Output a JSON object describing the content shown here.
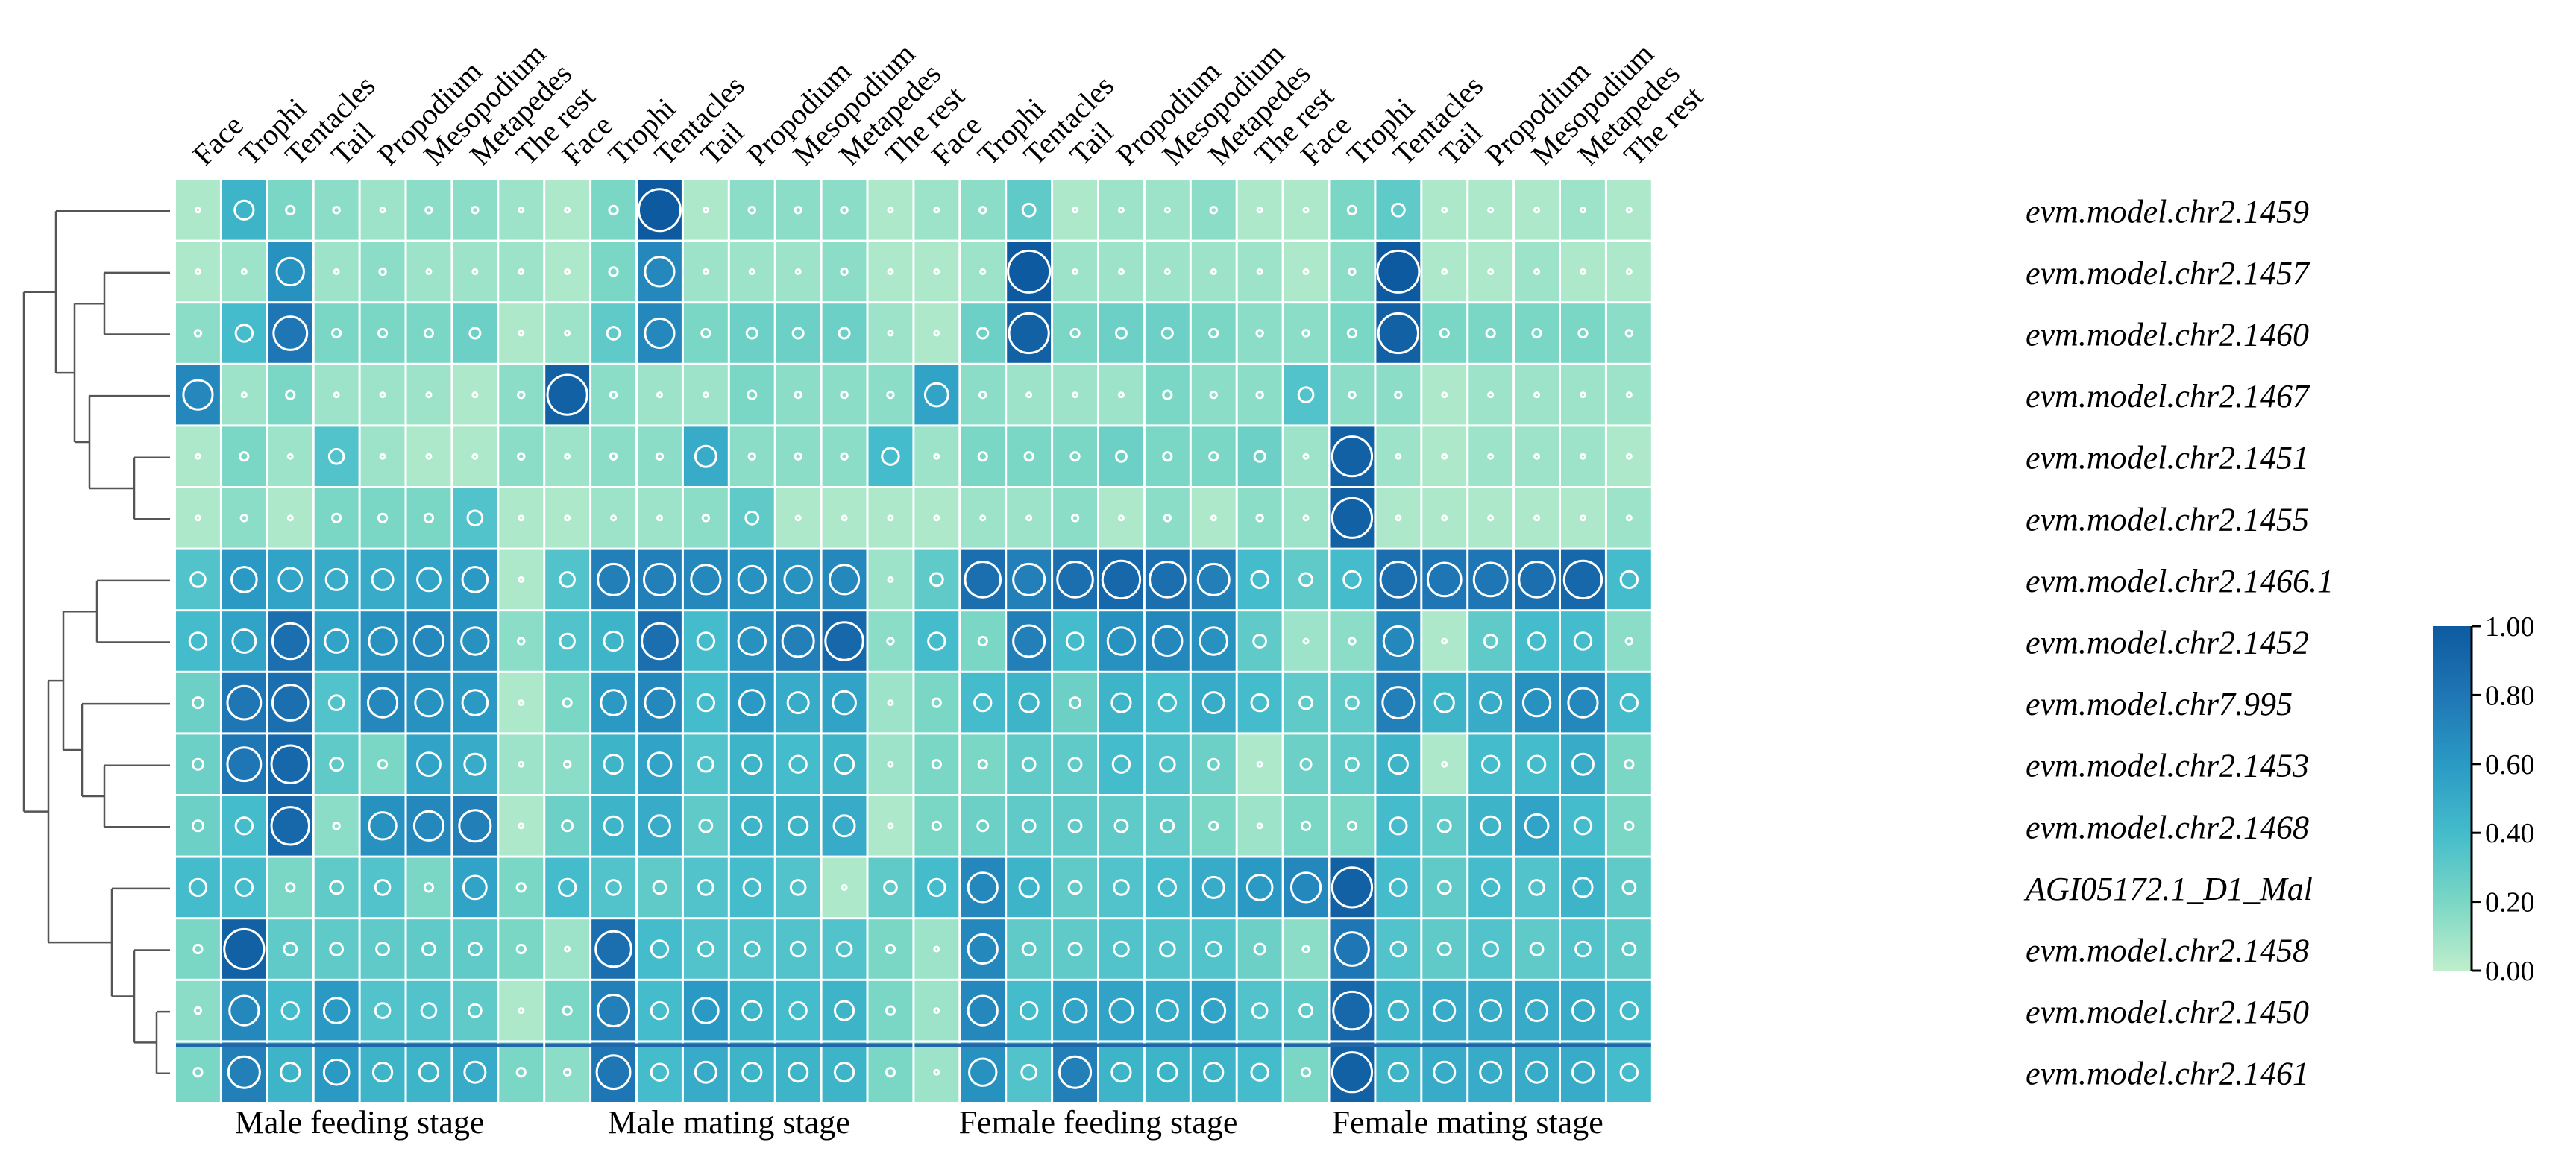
{
  "chart_data": {
    "type": "heatmap",
    "title": "",
    "tissues": [
      "Face",
      "Trophi",
      "Tentacles",
      "Tail",
      "Propodium",
      "Mesopodium",
      "Metapedes",
      "The rest"
    ],
    "groups": [
      "Male feeding stage",
      "Male mating stage",
      "Female feeding stage",
      "Female mating stage"
    ],
    "columns": [
      "Face",
      "Trophi",
      "Tentacles",
      "Tail",
      "Propodium",
      "Mesopodium",
      "Metapedes",
      "The rest",
      "Face",
      "Trophi",
      "Tentacles",
      "Tail",
      "Propodium",
      "Mesopodium",
      "Metapedes",
      "The rest",
      "Face",
      "Trophi",
      "Tentacles",
      "Tail",
      "Propodium",
      "Mesopodium",
      "Metapedes",
      "The rest",
      "Face",
      "Trophi",
      "Tentacles",
      "Tail",
      "Propodium",
      "Mesopodium",
      "Metapedes",
      "The rest"
    ],
    "rows": [
      "evm.model.chr2.1459",
      "evm.model.chr2.1457",
      "evm.model.chr2.1460",
      "evm.model.chr2.1467",
      "evm.model.chr2.1451",
      "evm.model.chr2.1455",
      "evm.model.chr2.1466.1",
      "evm.model.chr2.1452",
      "evm.model.chr7.995",
      "evm.model.chr2.1453",
      "evm.model.chr2.1468",
      "AGI05172.1_D1_Mal",
      "evm.model.chr2.1458",
      "evm.model.chr2.1450",
      "evm.model.chr2.1461"
    ],
    "values": [
      [
        0.05,
        0.45,
        0.2,
        0.15,
        0.1,
        0.15,
        0.15,
        0.1,
        0.05,
        0.2,
        1.0,
        0.05,
        0.15,
        0.15,
        0.15,
        0.05,
        0.1,
        0.15,
        0.3,
        0.05,
        0.1,
        0.1,
        0.15,
        0.05,
        0.05,
        0.2,
        0.3,
        0.05,
        0.05,
        0.05,
        0.1,
        0.05
      ],
      [
        0.05,
        0.1,
        0.65,
        0.1,
        0.15,
        0.1,
        0.1,
        0.1,
        0.05,
        0.2,
        0.7,
        0.1,
        0.1,
        0.1,
        0.15,
        0.05,
        0.05,
        0.1,
        1.0,
        0.1,
        0.1,
        0.1,
        0.1,
        0.1,
        0.05,
        0.15,
        1.0,
        0.05,
        0.05,
        0.1,
        0.05,
        0.05
      ],
      [
        0.15,
        0.4,
        0.8,
        0.2,
        0.2,
        0.2,
        0.25,
        0.05,
        0.1,
        0.3,
        0.7,
        0.2,
        0.25,
        0.25,
        0.25,
        0.1,
        0.05,
        0.25,
        0.95,
        0.2,
        0.25,
        0.25,
        0.2,
        0.15,
        0.15,
        0.2,
        0.95,
        0.2,
        0.2,
        0.2,
        0.2,
        0.15
      ],
      [
        0.7,
        0.1,
        0.2,
        0.1,
        0.1,
        0.1,
        0.05,
        0.15,
        0.95,
        0.15,
        0.1,
        0.1,
        0.2,
        0.15,
        0.15,
        0.15,
        0.55,
        0.15,
        0.1,
        0.1,
        0.1,
        0.2,
        0.15,
        0.15,
        0.35,
        0.15,
        0.15,
        0.05,
        0.1,
        0.1,
        0.1,
        0.1
      ],
      [
        0.05,
        0.2,
        0.1,
        0.35,
        0.1,
        0.05,
        0.05,
        0.15,
        0.1,
        0.15,
        0.15,
        0.5,
        0.15,
        0.15,
        0.15,
        0.4,
        0.1,
        0.2,
        0.2,
        0.2,
        0.25,
        0.2,
        0.2,
        0.25,
        0.1,
        0.95,
        0.1,
        0.05,
        0.1,
        0.1,
        0.1,
        0.05
      ],
      [
        0.05,
        0.15,
        0.05,
        0.2,
        0.2,
        0.2,
        0.35,
        0.05,
        0.05,
        0.1,
        0.1,
        0.15,
        0.3,
        0.05,
        0.05,
        0.05,
        0.05,
        0.1,
        0.1,
        0.15,
        0.05,
        0.15,
        0.05,
        0.15,
        0.1,
        0.95,
        0.05,
        0.05,
        0.05,
        0.05,
        0.05,
        0.1
      ],
      [
        0.35,
        0.6,
        0.55,
        0.5,
        0.5,
        0.55,
        0.6,
        0.05,
        0.35,
        0.75,
        0.75,
        0.7,
        0.65,
        0.65,
        0.7,
        0.1,
        0.3,
        0.85,
        0.75,
        0.85,
        0.9,
        0.85,
        0.75,
        0.4,
        0.3,
        0.4,
        0.85,
        0.8,
        0.8,
        0.85,
        0.9,
        0.4
      ],
      [
        0.4,
        0.55,
        0.85,
        0.55,
        0.65,
        0.7,
        0.65,
        0.15,
        0.35,
        0.45,
        0.85,
        0.4,
        0.65,
        0.75,
        0.9,
        0.15,
        0.4,
        0.2,
        0.75,
        0.4,
        0.65,
        0.7,
        0.65,
        0.3,
        0.1,
        0.15,
        0.7,
        0.05,
        0.3,
        0.4,
        0.4,
        0.15
      ],
      [
        0.25,
        0.8,
        0.85,
        0.35,
        0.7,
        0.65,
        0.6,
        0.05,
        0.2,
        0.6,
        0.7,
        0.4,
        0.6,
        0.5,
        0.55,
        0.1,
        0.2,
        0.4,
        0.45,
        0.25,
        0.45,
        0.4,
        0.5,
        0.4,
        0.3,
        0.3,
        0.75,
        0.45,
        0.5,
        0.65,
        0.7,
        0.4
      ],
      [
        0.25,
        0.8,
        0.9,
        0.3,
        0.2,
        0.55,
        0.5,
        0.1,
        0.15,
        0.45,
        0.55,
        0.35,
        0.45,
        0.4,
        0.45,
        0.1,
        0.2,
        0.2,
        0.3,
        0.3,
        0.4,
        0.35,
        0.25,
        0.05,
        0.25,
        0.3,
        0.45,
        0.05,
        0.4,
        0.4,
        0.5,
        0.2
      ],
      [
        0.25,
        0.4,
        0.9,
        0.15,
        0.65,
        0.7,
        0.75,
        0.05,
        0.25,
        0.45,
        0.5,
        0.3,
        0.45,
        0.45,
        0.5,
        0.05,
        0.2,
        0.25,
        0.3,
        0.3,
        0.3,
        0.3,
        0.2,
        0.1,
        0.2,
        0.2,
        0.4,
        0.3,
        0.45,
        0.55,
        0.4,
        0.2
      ],
      [
        0.4,
        0.4,
        0.2,
        0.3,
        0.35,
        0.2,
        0.55,
        0.2,
        0.4,
        0.35,
        0.3,
        0.35,
        0.4,
        0.35,
        0.05,
        0.3,
        0.4,
        0.7,
        0.45,
        0.3,
        0.35,
        0.4,
        0.5,
        0.6,
        0.7,
        0.95,
        0.4,
        0.3,
        0.4,
        0.35,
        0.45,
        0.3
      ],
      [
        0.2,
        0.95,
        0.3,
        0.3,
        0.3,
        0.3,
        0.3,
        0.2,
        0.1,
        0.85,
        0.4,
        0.35,
        0.35,
        0.35,
        0.35,
        0.2,
        0.1,
        0.7,
        0.3,
        0.3,
        0.35,
        0.35,
        0.35,
        0.25,
        0.15,
        0.8,
        0.35,
        0.3,
        0.35,
        0.3,
        0.35,
        0.3
      ],
      [
        0.15,
        0.7,
        0.4,
        0.6,
        0.35,
        0.35,
        0.3,
        0.05,
        0.2,
        0.75,
        0.4,
        0.6,
        0.45,
        0.4,
        0.45,
        0.2,
        0.1,
        0.7,
        0.4,
        0.55,
        0.55,
        0.5,
        0.55,
        0.35,
        0.3,
        0.9,
        0.45,
        0.5,
        0.5,
        0.5,
        0.5,
        0.4
      ],
      [
        0.2,
        0.75,
        0.45,
        0.6,
        0.45,
        0.45,
        0.5,
        0.2,
        0.15,
        0.8,
        0.4,
        0.5,
        0.45,
        0.45,
        0.45,
        0.2,
        0.1,
        0.65,
        0.35,
        0.75,
        0.45,
        0.45,
        0.45,
        0.4,
        0.2,
        0.95,
        0.45,
        0.5,
        0.5,
        0.5,
        0.5,
        0.4
      ]
    ],
    "colorbar": {
      "min": 0.0,
      "max": 1.0,
      "ticks": [
        "0.00",
        "0.20",
        "0.40",
        "0.60",
        "0.80",
        "1.00"
      ],
      "colors": [
        "#bfeecc",
        "#7ad7c5",
        "#44bccb",
        "#2a9ac4",
        "#1f76b4",
        "#0d5aa0"
      ]
    },
    "dendrogram": "hierarchical clustering of rows",
    "xlabel": "",
    "ylabel": ""
  }
}
